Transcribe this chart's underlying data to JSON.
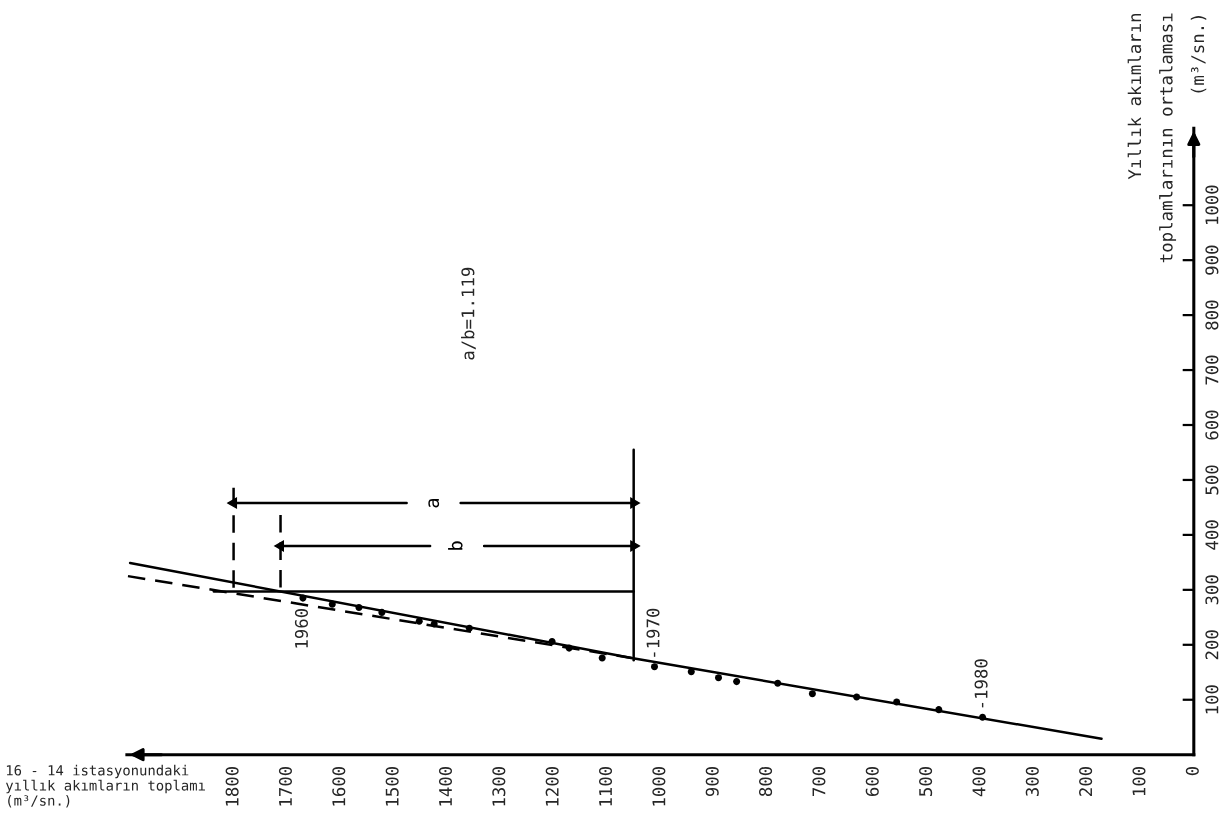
{
  "chart_data": {
    "type": "scatter",
    "xlabel": "16 - 14 istasyonundaki\nyıllık akımların toplamı\n(m³/sn.)",
    "ylabel": "Yıllık akımların\ntoplamlarının ortalaması\n(m³/sn.)",
    "xlim": [
      2000,
      0
    ],
    "xticks": [
      0,
      100,
      200,
      300,
      400,
      500,
      600,
      700,
      800,
      900,
      1000,
      1100,
      1200,
      1300,
      1400,
      1500,
      1600,
      1700,
      1800
    ],
    "ylim": [
      0,
      1140
    ],
    "yticks": [
      100,
      200,
      300,
      400,
      500,
      600,
      700,
      800,
      900,
      1000
    ],
    "series": [
      {
        "type": "line",
        "x": [
          1994,
          1054,
          173
        ],
        "values": [
          349,
          176,
          29
        ],
        "color": "#000000",
        "line_style": "solid"
      },
      {
        "type": "line",
        "x": [
          1998,
          1054
        ],
        "values": [
          325,
          176
        ],
        "color": "#000000",
        "line_style": "dashed"
      },
      {
        "x": [
          1670,
          1615,
          1565,
          1522,
          1452,
          1424,
          1358,
          1203,
          1171,
          1109,
          1011,
          942,
          891,
          857,
          780,
          715,
          632,
          557,
          478,
          396
        ],
        "values": [
          285,
          274,
          268,
          259,
          243,
          238,
          230,
          206,
          194,
          176,
          160,
          151,
          140,
          133,
          130,
          111,
          105,
          96,
          82,
          68
        ],
        "color": "#000000",
        "marker": "circle"
      },
      {
        "type": "line",
        "x": [
          1837,
          1050
        ],
        "values": [
          297,
          297
        ],
        "color": "#000000",
        "line_style": "solid"
      },
      {
        "type": "line",
        "x": [
          1050,
          1050
        ],
        "values": [
          172,
          555
        ],
        "color": "#000000",
        "line_style": "solid"
      },
      {
        "type": "line",
        "x": [
          1800,
          1800
        ],
        "values": [
          486,
          297
        ],
        "color": "#000000",
        "line_style": "dashed"
      },
      {
        "type": "line",
        "x": [
          1712,
          1712
        ],
        "values": [
          436,
          297
        ],
        "color": "#000000",
        "line_style": "dashed"
      },
      {
        "type": "line",
        "name": "a",
        "x": [
          1800,
          1050
        ],
        "values": [
          458,
          458
        ],
        "color": "#000000",
        "line_style": "solid",
        "marker": "triangle"
      },
      {
        "type": "line",
        "name": "b",
        "x": [
          1712,
          1050
        ],
        "values": [
          380,
          380
        ],
        "color": "#000000",
        "line_style": "solid",
        "marker": "triangle"
      }
    ],
    "annotations": [
      "a/b=1.119",
      {
        "text": "1960",
        "x": 1670,
        "y": 285
      },
      {
        "text": "-1970",
        "x": 1011,
        "y": 160
      },
      {
        "text": "-1980",
        "x": 396,
        "y": 68
      }
    ]
  }
}
